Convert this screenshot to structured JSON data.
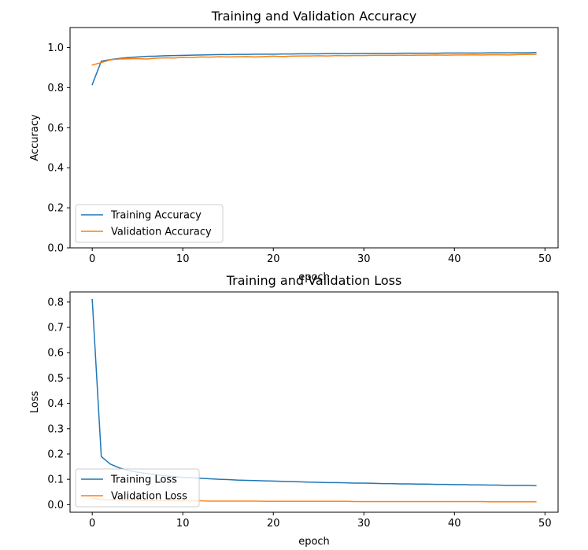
{
  "chart_data": [
    {
      "type": "line",
      "title": "Training and Validation Accuracy",
      "xlabel": "epoch",
      "ylabel": "Accuracy",
      "xlim": [
        -2.45,
        51.45
      ],
      "ylim": [
        0.0,
        1.1
      ],
      "xticks": [
        0,
        10,
        20,
        30,
        40,
        50
      ],
      "yticks": [
        0.0,
        0.2,
        0.4,
        0.6,
        0.8,
        1.0
      ],
      "grid": false,
      "legend_position": "lower-left",
      "x": [
        0,
        1,
        2,
        3,
        4,
        5,
        6,
        7,
        8,
        9,
        10,
        11,
        12,
        13,
        14,
        15,
        16,
        17,
        18,
        19,
        20,
        21,
        22,
        23,
        24,
        25,
        26,
        27,
        28,
        29,
        30,
        31,
        32,
        33,
        34,
        35,
        36,
        37,
        38,
        39,
        40,
        41,
        42,
        43,
        44,
        45,
        46,
        47,
        48,
        49
      ],
      "series": [
        {
          "name": "Training Accuracy",
          "color": "#1f77b4",
          "values": [
            0.815,
            0.932,
            0.94,
            0.946,
            0.95,
            0.953,
            0.956,
            0.957,
            0.959,
            0.96,
            0.961,
            0.962,
            0.963,
            0.964,
            0.965,
            0.965,
            0.966,
            0.966,
            0.967,
            0.967,
            0.967,
            0.968,
            0.968,
            0.969,
            0.969,
            0.969,
            0.97,
            0.97,
            0.97,
            0.97,
            0.971,
            0.971,
            0.971,
            0.971,
            0.972,
            0.972,
            0.972,
            0.972,
            0.972,
            0.973,
            0.973,
            0.973,
            0.973,
            0.973,
            0.974,
            0.974,
            0.974,
            0.974,
            0.974,
            0.975
          ]
        },
        {
          "name": "Validation Accuracy",
          "color": "#ff7f0e",
          "values": [
            0.913,
            0.925,
            0.939,
            0.943,
            0.944,
            0.945,
            0.943,
            0.947,
            0.949,
            0.948,
            0.951,
            0.95,
            0.953,
            0.952,
            0.954,
            0.953,
            0.954,
            0.955,
            0.953,
            0.955,
            0.957,
            0.955,
            0.957,
            0.958,
            0.958,
            0.959,
            0.958,
            0.96,
            0.959,
            0.96,
            0.96,
            0.961,
            0.961,
            0.961,
            0.962,
            0.961,
            0.962,
            0.962,
            0.963,
            0.962,
            0.963,
            0.963,
            0.964,
            0.963,
            0.964,
            0.964,
            0.963,
            0.965,
            0.966,
            0.966
          ]
        }
      ]
    },
    {
      "type": "line",
      "title": "Training and Validation Loss",
      "xlabel": "epoch",
      "ylabel": "Loss",
      "xlim": [
        -2.45,
        51.45
      ],
      "ylim": [
        -0.03,
        0.84
      ],
      "xticks": [
        0,
        10,
        20,
        30,
        40,
        50
      ],
      "yticks": [
        0.0,
        0.1,
        0.2,
        0.3,
        0.4,
        0.5,
        0.6,
        0.7,
        0.8
      ],
      "grid": false,
      "legend_position": "lower-left",
      "x": [
        0,
        1,
        2,
        3,
        4,
        5,
        6,
        7,
        8,
        9,
        10,
        11,
        12,
        13,
        14,
        15,
        16,
        17,
        18,
        19,
        20,
        21,
        22,
        23,
        24,
        25,
        26,
        27,
        28,
        29,
        30,
        31,
        32,
        33,
        34,
        35,
        36,
        37,
        38,
        39,
        40,
        41,
        42,
        43,
        44,
        45,
        46,
        47,
        48,
        49
      ],
      "series": [
        {
          "name": "Training Loss",
          "color": "#1f77b4",
          "values": [
            0.81,
            0.19,
            0.16,
            0.145,
            0.135,
            0.128,
            0.123,
            0.118,
            0.114,
            0.111,
            0.108,
            0.106,
            0.104,
            0.102,
            0.1,
            0.099,
            0.097,
            0.096,
            0.095,
            0.094,
            0.093,
            0.092,
            0.091,
            0.09,
            0.089,
            0.088,
            0.087,
            0.087,
            0.086,
            0.085,
            0.085,
            0.084,
            0.083,
            0.083,
            0.082,
            0.082,
            0.081,
            0.081,
            0.08,
            0.08,
            0.079,
            0.079,
            0.078,
            0.078,
            0.077,
            0.077,
            0.076,
            0.076,
            0.076,
            0.075
          ]
        },
        {
          "name": "Validation Loss",
          "color": "#ff7f0e",
          "values": [
            0.025,
            0.02,
            0.019,
            0.018,
            0.017,
            0.017,
            0.016,
            0.016,
            0.016,
            0.015,
            0.015,
            0.015,
            0.015,
            0.014,
            0.014,
            0.014,
            0.014,
            0.014,
            0.014,
            0.013,
            0.013,
            0.013,
            0.013,
            0.013,
            0.013,
            0.013,
            0.013,
            0.013,
            0.013,
            0.012,
            0.012,
            0.012,
            0.012,
            0.012,
            0.012,
            0.012,
            0.012,
            0.012,
            0.012,
            0.012,
            0.012,
            0.012,
            0.012,
            0.012,
            0.011,
            0.011,
            0.011,
            0.011,
            0.011,
            0.011
          ]
        }
      ]
    }
  ]
}
